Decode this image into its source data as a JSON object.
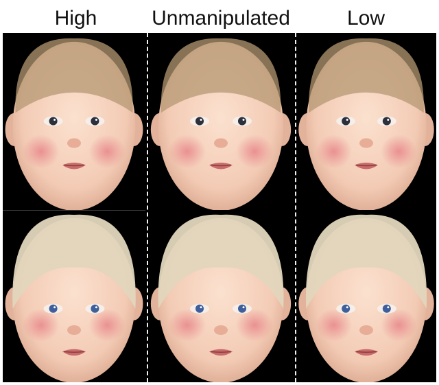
{
  "columns": [
    {
      "label": "High"
    },
    {
      "label": "Unmanipulated"
    },
    {
      "label": "Low"
    }
  ],
  "rows": [
    {
      "subject": "infant-1",
      "hair": "light-brown"
    },
    {
      "subject": "infant-2",
      "hair": "blonde"
    }
  ],
  "colors": {
    "background": "#000000",
    "skin": "#f3cbb5",
    "cheek": "#e8868a",
    "lips": "#c86a6a",
    "hair_row1": "#b59873",
    "hair_row2": "#e2d6bd",
    "eyes_row1": "#2c2f3c",
    "eyes_row2": "#3f5f9c",
    "divider": "#f2f2f2"
  }
}
